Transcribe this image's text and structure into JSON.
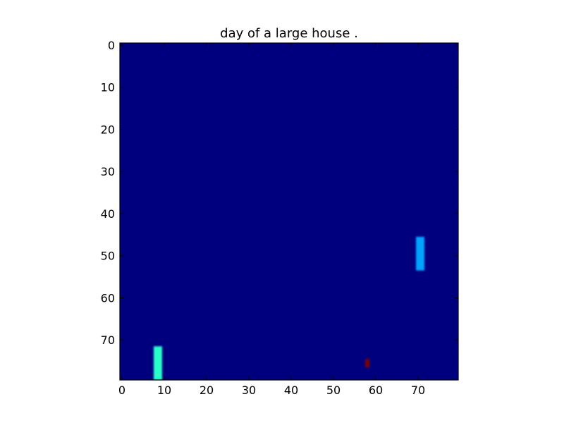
{
  "chart_data": {
    "type": "heatmap",
    "title": "day of a large house .",
    "xlabel": "",
    "ylabel": "",
    "xlim": [
      -0.5,
      79.5
    ],
    "ylim": [
      79.5,
      -0.5
    ],
    "x_ticks": [
      "0",
      "10",
      "20",
      "30",
      "40",
      "50",
      "60",
      "70"
    ],
    "y_ticks": [
      "0",
      "10",
      "20",
      "30",
      "40",
      "50",
      "60",
      "70"
    ],
    "grid": false,
    "legend": "none",
    "colormap": "jet",
    "background_value": 0.0,
    "background_color": "#00007f",
    "cells": [
      {
        "x": [
          70,
          71
        ],
        "y": [
          46,
          53
        ],
        "value": 0.35,
        "color": "#00a4ff"
      },
      {
        "x": [
          8,
          9
        ],
        "y": [
          72,
          79
        ],
        "value": 0.45,
        "color": "#2cffca"
      },
      {
        "x": [
          58,
          58
        ],
        "y": [
          75,
          76
        ],
        "value": 1.0,
        "color": "#7f0000"
      }
    ]
  }
}
